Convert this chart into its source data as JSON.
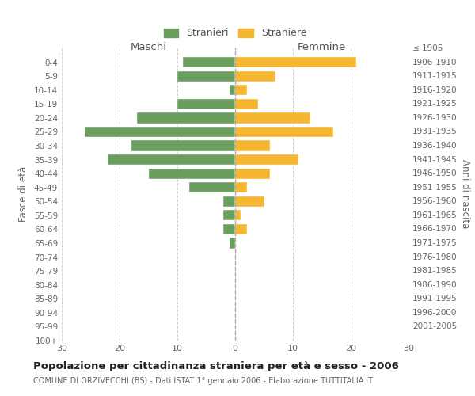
{
  "age_groups": [
    "0-4",
    "5-9",
    "10-14",
    "15-19",
    "20-24",
    "25-29",
    "30-34",
    "35-39",
    "40-44",
    "45-49",
    "50-54",
    "55-59",
    "60-64",
    "65-69",
    "70-74",
    "75-79",
    "80-84",
    "85-89",
    "90-94",
    "95-99",
    "100+"
  ],
  "birth_years": [
    "2001-2005",
    "1996-2000",
    "1991-1995",
    "1986-1990",
    "1981-1985",
    "1976-1980",
    "1971-1975",
    "1966-1970",
    "1961-1965",
    "1956-1960",
    "1951-1955",
    "1946-1950",
    "1941-1945",
    "1936-1940",
    "1931-1935",
    "1926-1930",
    "1921-1925",
    "1916-1920",
    "1911-1915",
    "1906-1910",
    "≤ 1905"
  ],
  "maschi": [
    9,
    10,
    1,
    10,
    17,
    26,
    18,
    22,
    15,
    8,
    2,
    2,
    2,
    1,
    0,
    0,
    0,
    0,
    0,
    0,
    0
  ],
  "femmine": [
    21,
    7,
    2,
    4,
    13,
    17,
    6,
    11,
    6,
    2,
    5,
    1,
    2,
    0,
    0,
    0,
    0,
    0,
    0,
    0,
    0
  ],
  "color_maschi": "#6a9e5f",
  "color_femmine": "#f5b731",
  "title": "Popolazione per cittadinanza straniera per età e sesso - 2006",
  "subtitle": "COMUNE DI ORZIVECCHI (BS) - Dati ISTAT 1° gennaio 2006 - Elaborazione TUTTITALIA.IT",
  "xlabel_left": "Maschi",
  "xlabel_right": "Femmine",
  "ylabel_left": "Fasce di età",
  "ylabel_right": "Anni di nascita",
  "legend_maschi": "Stranieri",
  "legend_femmine": "Straniere",
  "xlim": 30,
  "bg_color": "#ffffff",
  "grid_color": "#cccccc",
  "bar_height": 0.75
}
